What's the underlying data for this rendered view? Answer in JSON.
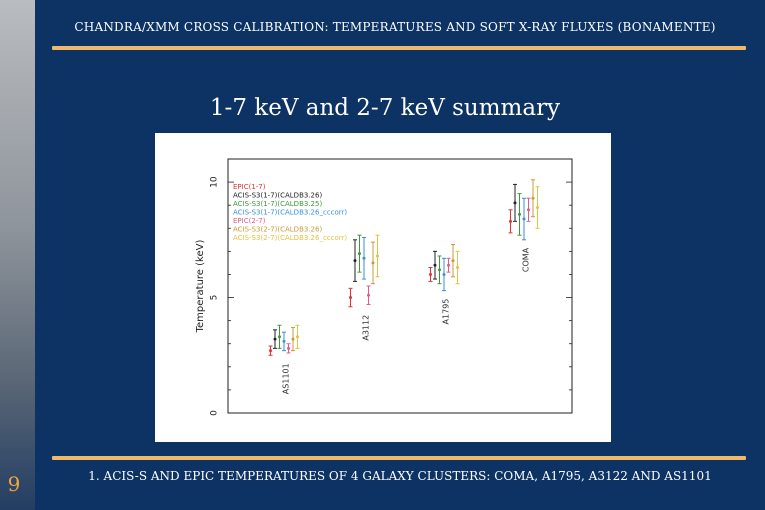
{
  "slide": {
    "number": "9",
    "header": "CHANDRA/XMM CROSS CALIBRATION: TEMPERATURES AND SOFT X-RAY FLUXES (BONAMENTE)",
    "title": "1-7 keV and 2-7 keV summary",
    "footer": "1. ACIS-S AND EPIC TEMPERATURES OF 4 GALAXY CLUSTERS: COMA, A1795, A3122 AND AS1101"
  },
  "colors": {
    "background": "#0d3365",
    "accent_rule": "#f0b86a",
    "slide_number": "#f2a73b"
  },
  "chart_data": {
    "type": "scatter",
    "title": "",
    "xlabel": "",
    "ylabel": "Temperature (keV)",
    "categories": [
      "AS1101",
      "A3112",
      "A1795",
      "COMA"
    ],
    "ylim": [
      0,
      11
    ],
    "yticks": [
      0,
      5,
      10
    ],
    "grid": false,
    "legend_position": "top-left",
    "series": [
      {
        "name": "EPIC(1-7)",
        "color": "#e0303a",
        "values": [
          2.7,
          5.0,
          6.0,
          8.3
        ],
        "errors": [
          0.2,
          0.4,
          0.3,
          0.5
        ]
      },
      {
        "name": "ACIS-S3(1-7)(CALDB3.26)",
        "color": "#222222",
        "values": [
          3.2,
          6.6,
          6.4,
          9.1
        ],
        "errors": [
          0.4,
          0.9,
          0.6,
          0.8
        ]
      },
      {
        "name": "ACIS-S3(1-7)(CALDB3.25)",
        "color": "#3a9a3a",
        "values": [
          3.3,
          6.9,
          6.2,
          8.6
        ],
        "errors": [
          0.5,
          0.8,
          0.6,
          0.9
        ]
      },
      {
        "name": "ACIS-S3(1-7)(CALDB3.26_cccorr)",
        "color": "#3a8fd8",
        "values": [
          3.1,
          6.7,
          6.0,
          8.4
        ],
        "errors": [
          0.4,
          0.9,
          0.7,
          0.9
        ]
      },
      {
        "name": "EPIC(2-7)",
        "color": "#e05a8a",
        "values": [
          2.8,
          5.1,
          6.4,
          8.8
        ],
        "errors": [
          0.2,
          0.4,
          0.3,
          0.5
        ]
      },
      {
        "name": "ACIS-S3(2-7)(CALDB3.26)",
        "color": "#c89a3a",
        "values": [
          3.2,
          6.5,
          6.6,
          9.3
        ],
        "errors": [
          0.5,
          0.9,
          0.7,
          0.8
        ]
      },
      {
        "name": "ACIS-S3(2-7)(CALDB3.26_cccorr)",
        "color": "#e8c040",
        "values": [
          3.3,
          6.8,
          6.3,
          8.9
        ],
        "errors": [
          0.5,
          0.9,
          0.7,
          0.9
        ]
      }
    ]
  }
}
